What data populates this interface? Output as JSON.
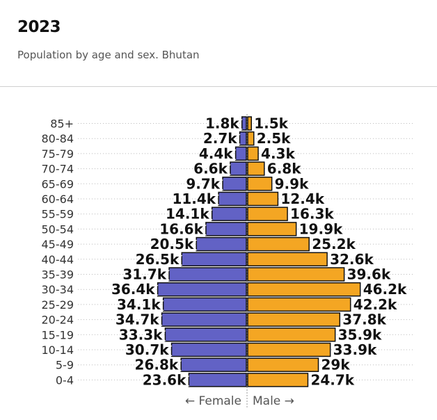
{
  "header": {
    "title": "2023",
    "subtitle": "Population by age and sex. Bhutan"
  },
  "axis": {
    "female_label": "← Female",
    "male_label": "Male →"
  },
  "colors": {
    "female": "#6262c5",
    "male": "#f4a623",
    "outline": "#111111",
    "gridline": "#bbbbbb"
  },
  "chart_data": {
    "type": "bar",
    "orientation": "horizontal-pyramid",
    "categories": [
      "85+",
      "80-84",
      "75-79",
      "70-74",
      "65-69",
      "60-64",
      "55-59",
      "50-54",
      "45-49",
      "40-44",
      "35-39",
      "30-34",
      "25-29",
      "20-24",
      "15-19",
      "10-14",
      "5-9",
      "0-4"
    ],
    "series": [
      {
        "name": "Female",
        "values": [
          1.8,
          2.7,
          4.4,
          6.6,
          9.7,
          11.4,
          14.1,
          16.6,
          20.5,
          26.5,
          31.7,
          36.4,
          34.1,
          34.7,
          33.3,
          30.7,
          26.8,
          23.6
        ],
        "labels": [
          "1.8k",
          "2.7k",
          "4.4k",
          "6.6k",
          "9.7k",
          "11.4k",
          "14.1k",
          "16.6k",
          "20.5k",
          "26.5k",
          "31.7k",
          "36.4k",
          "34.1k",
          "34.7k",
          "33.3k",
          "30.7k",
          "26.8k",
          "23.6k"
        ]
      },
      {
        "name": "Male",
        "values": [
          1.5,
          2.5,
          4.3,
          6.8,
          9.9,
          12.4,
          16.3,
          19.9,
          25.2,
          32.6,
          39.6,
          46.2,
          42.2,
          37.8,
          35.9,
          33.9,
          29.0,
          24.7
        ],
        "labels": [
          "1.5k",
          "2.5k",
          "4.3k",
          "6.8k",
          "9.9k",
          "12.4k",
          "16.3k",
          "19.9k",
          "25.2k",
          "32.6k",
          "39.6k",
          "46.2k",
          "42.2k",
          "37.8k",
          "35.9k",
          "33.9k",
          "29k",
          "24.7k"
        ]
      }
    ],
    "units": "thousands",
    "title": "2023",
    "subtitle": "Population by age and sex. Bhutan",
    "xlabel": "← Female | Male →",
    "ylabel": "",
    "grid": "dotted horizontal"
  }
}
